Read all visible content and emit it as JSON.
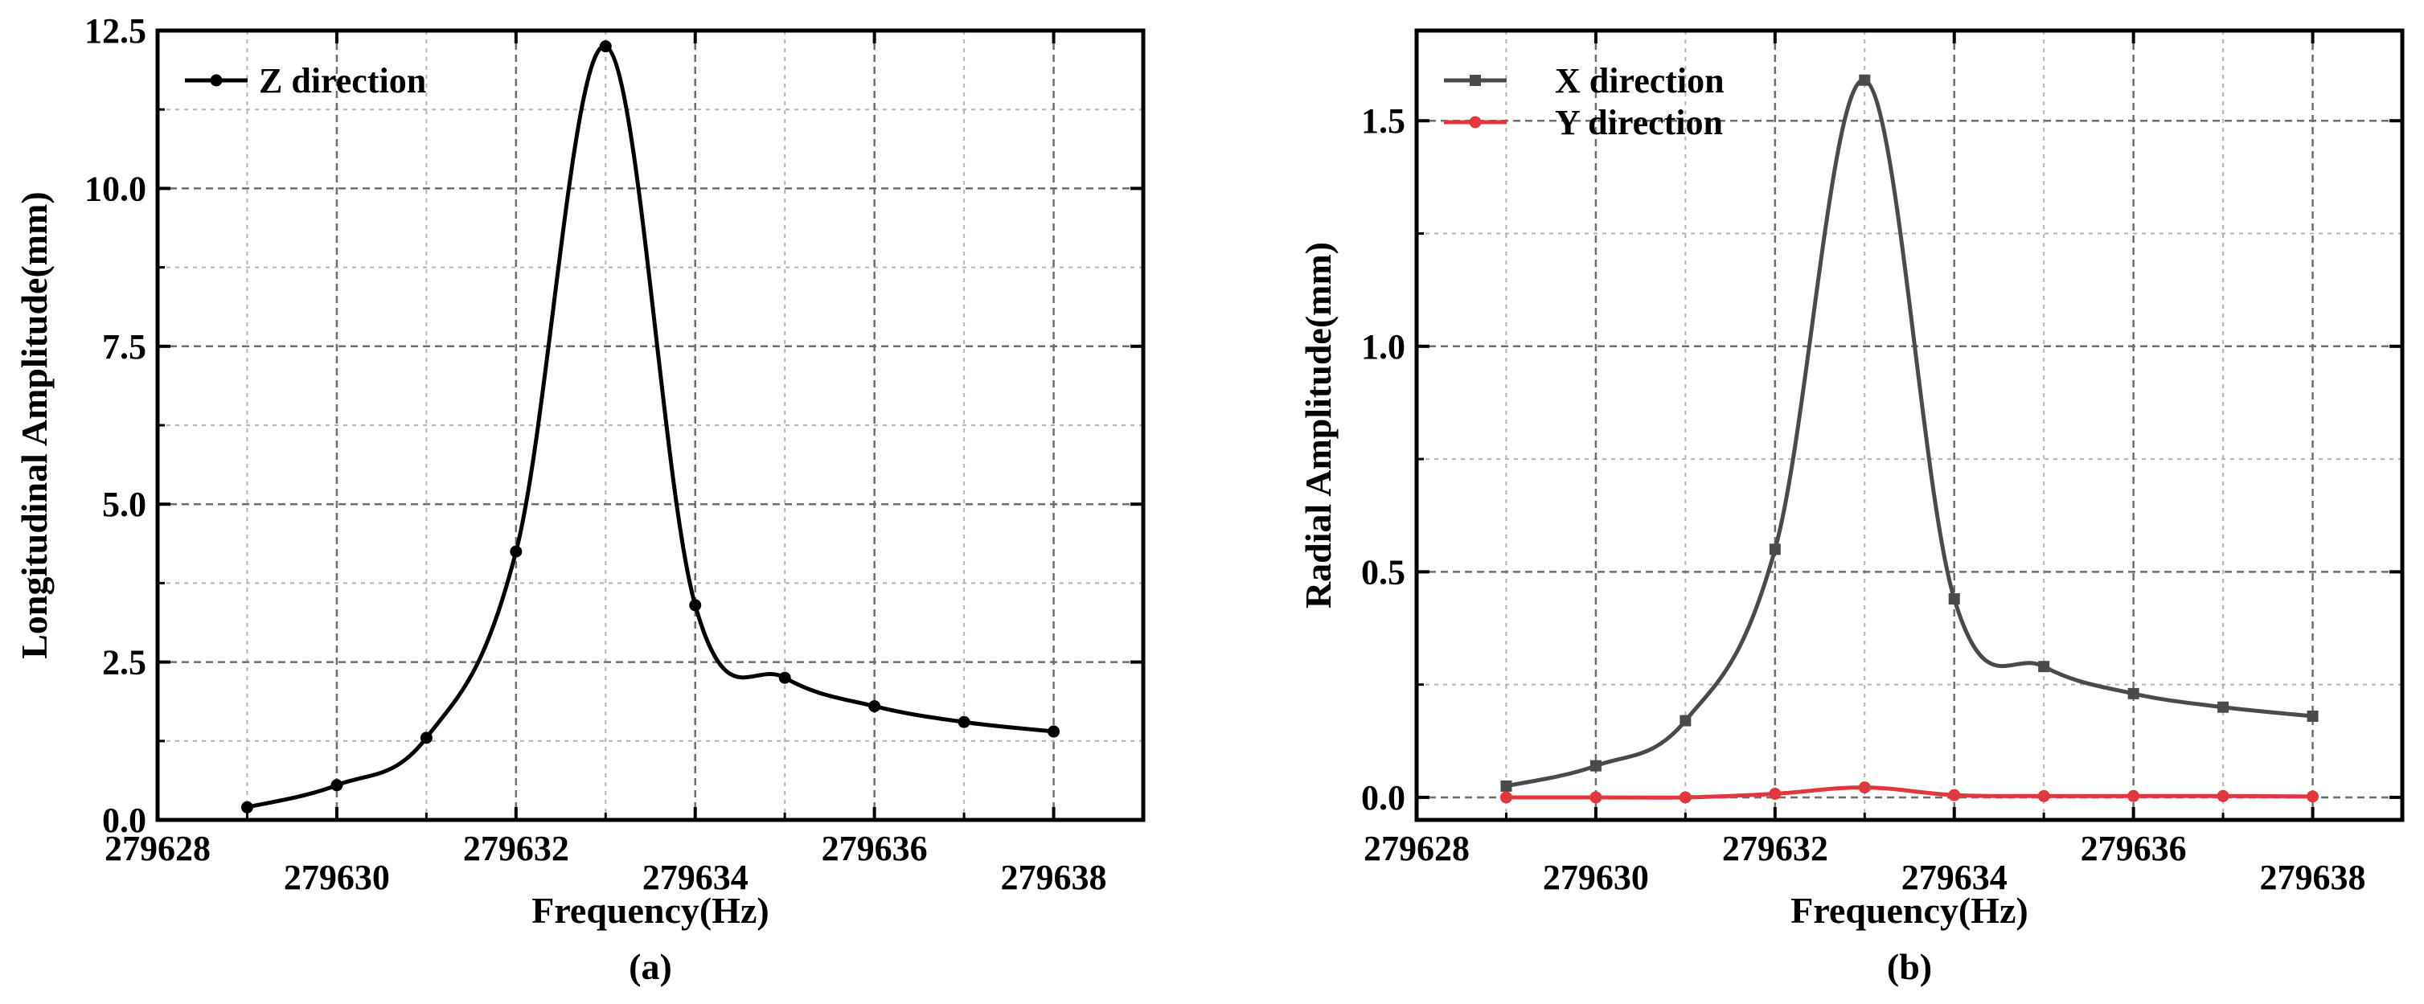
{
  "colors": {
    "z_series": "#000000",
    "x_series": "#4a4a4a",
    "y_series": "#e0383d",
    "major_grid": "#6e6e6e",
    "minor_grid": "#b4b4b4"
  },
  "chart_data": [
    {
      "type": "line",
      "caption": "(a)",
      "xlabel": "Frequency(Hz)",
      "ylabel": "Longitudinal Amplitude(mm)",
      "xlim": [
        279628,
        279639
      ],
      "ylim": [
        0,
        12.5
      ],
      "xticks": [
        279628,
        279630,
        279632,
        279634,
        279636,
        279638
      ],
      "xtick_labels": [
        "279628",
        "279630",
        "279632",
        "279634",
        "279636",
        "279638"
      ],
      "yticks": [
        0,
        2.5,
        5,
        7.5,
        10,
        12.5
      ],
      "ytick_labels": [
        "0.0",
        "2.5",
        "5.0",
        "7.5",
        "10.0",
        "12.5"
      ],
      "legend_position": "top-left",
      "series": [
        {
          "name": "Z direction",
          "color": "#000000",
          "marker": "circle",
          "x": [
            279629,
            279630,
            279631,
            279632,
            279633,
            279634,
            279635,
            279636,
            279637,
            279638
          ],
          "y": [
            0.2,
            0.55,
            1.3,
            4.25,
            12.25,
            3.4,
            2.25,
            1.8,
            1.55,
            1.4
          ]
        }
      ]
    },
    {
      "type": "line",
      "caption": "(b)",
      "xlabel": "Frequency(Hz)",
      "ylabel": "Radial Amplitude(mm)",
      "xlim": [
        279628,
        279639
      ],
      "ylim": [
        -0.05,
        1.7
      ],
      "xticks": [
        279628,
        279630,
        279632,
        279634,
        279636,
        279638
      ],
      "xtick_labels": [
        "279628",
        "279630",
        "279632",
        "279634",
        "279636",
        "279638"
      ],
      "yticks": [
        0,
        0.5,
        1,
        1.5
      ],
      "ytick_labels": [
        "0.0",
        "0.5",
        "1.0",
        "1.5"
      ],
      "legend_position": "top-left",
      "series": [
        {
          "name": "X direction",
          "color": "#4a4a4a",
          "marker": "square",
          "x": [
            279629,
            279630,
            279631,
            279632,
            279633,
            279634,
            279635,
            279636,
            279637,
            279638
          ],
          "y": [
            0.025,
            0.07,
            0.17,
            0.55,
            1.59,
            0.44,
            0.29,
            0.23,
            0.2,
            0.18
          ]
        },
        {
          "name": "Y direction",
          "color": "#e0383d",
          "marker": "circle",
          "x": [
            279629,
            279630,
            279631,
            279632,
            279633,
            279634,
            279635,
            279636,
            279637,
            279638
          ],
          "y": [
            0.0,
            0.0,
            0.0,
            0.008,
            0.022,
            0.005,
            0.003,
            0.003,
            0.003,
            0.002
          ]
        }
      ]
    }
  ]
}
